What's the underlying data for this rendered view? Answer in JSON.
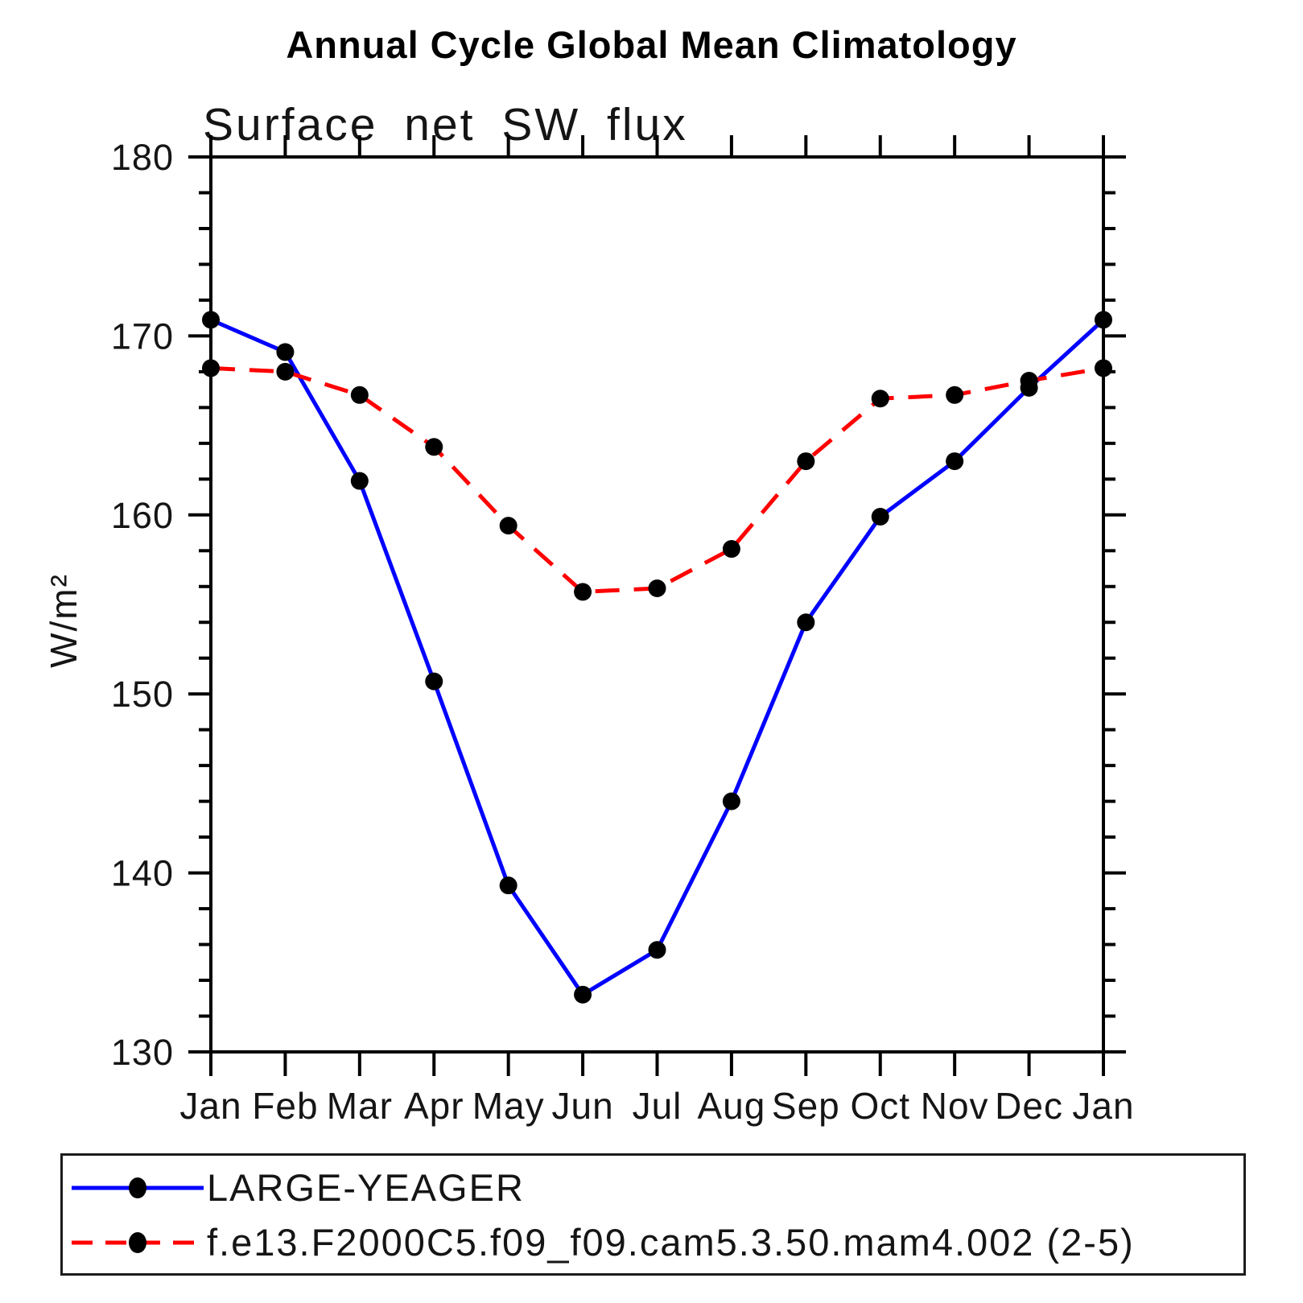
{
  "title": "Annual Cycle Global Mean Climatology",
  "subtitle": "Surface net SW flux",
  "y_axis_label": "W/m²",
  "colors": {
    "series1": "#0000ff",
    "series2": "#ff0000",
    "marker": "#000000",
    "axis": "#000000"
  },
  "legend": {
    "items": [
      {
        "label": "LARGE-YEAGER",
        "line_style": "solid",
        "color": "#0000ff"
      },
      {
        "label": "f.e13.F2000C5.f09_f09.cam5.3.50.mam4.002 (2-5)",
        "line_style": "dashed",
        "color": "#ff0000"
      }
    ]
  },
  "chart_data": {
    "type": "line",
    "title": "Annual Cycle Global Mean Climatology",
    "subtitle": "Surface net SW flux",
    "ylabel": "W/m²",
    "categories": [
      "Jan",
      "Feb",
      "Mar",
      "Apr",
      "May",
      "Jun",
      "Jul",
      "Aug",
      "Sep",
      "Oct",
      "Nov",
      "Dec",
      "Jan"
    ],
    "series": [
      {
        "name": "LARGE-YEAGER",
        "color": "#0000ff",
        "line_style": "solid",
        "marker": "circle",
        "values": [
          170.9,
          169.1,
          161.9,
          150.7,
          139.3,
          133.2,
          135.7,
          144.0,
          154.0,
          159.9,
          163.0,
          167.1,
          170.9
        ]
      },
      {
        "name": "f.e13.F2000C5.f09_f09.cam5.3.50.mam4.002 (2-5)",
        "color": "#ff0000",
        "line_style": "dashed",
        "marker": "circle",
        "values": [
          168.2,
          168.0,
          166.7,
          163.8,
          159.4,
          155.7,
          155.9,
          158.1,
          163.0,
          166.5,
          166.7,
          167.5,
          168.2
        ]
      }
    ],
    "ylim": [
      130,
      180
    ],
    "y_major_ticks": [
      130,
      140,
      150,
      160,
      170,
      180
    ],
    "y_minor_step": 2,
    "x_tick_every_category": true,
    "grid": false,
    "legend_position": "bottom-left"
  }
}
